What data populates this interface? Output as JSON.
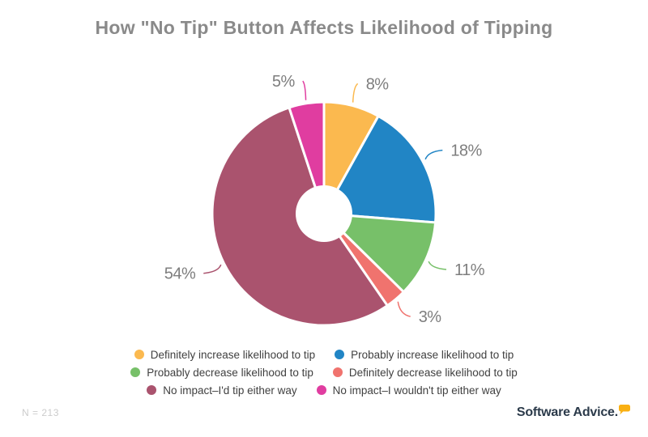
{
  "title": "How \"No Tip\" Button Affects Likelihood of Tipping",
  "chart_data": {
    "type": "pie",
    "subtype": "donut",
    "title": "How \"No Tip\" Button Affects Likelihood of Tipping",
    "labels": [
      "Definitely increase likelihood to tip",
      "Probably increase likelihood to tip",
      "Probably decrease likelihood to tip",
      "Definitely decrease likelihood to tip",
      "No impact–I'd tip either way",
      "No impact–I wouldn't tip either way"
    ],
    "values": [
      8,
      18,
      11,
      3,
      54,
      5
    ],
    "percent_labels": [
      "8%",
      "18%",
      "11%",
      "3%",
      "54%",
      "5%"
    ],
    "colors": [
      "#FBB94F",
      "#2185C5",
      "#77C069",
      "#F0736E",
      "#AA536E",
      "#E03DA0"
    ],
    "unit": "%",
    "start_angle_deg": 0,
    "direction": "clockwise",
    "legend_position": "bottom",
    "sample_note": "N = 213"
  },
  "footer": {
    "sample_note": "N = 213",
    "brand": "Software Advice."
  },
  "styles": {
    "title_color": "#8A8A8A",
    "percent_label_color": "#7E7E7E",
    "legend_text_color": "#404040",
    "note_color": "#CCCCCC",
    "brand_color": "#2B3A4A",
    "brand_bubble_color": "#F9B013",
    "background": "#FFFFFF"
  }
}
